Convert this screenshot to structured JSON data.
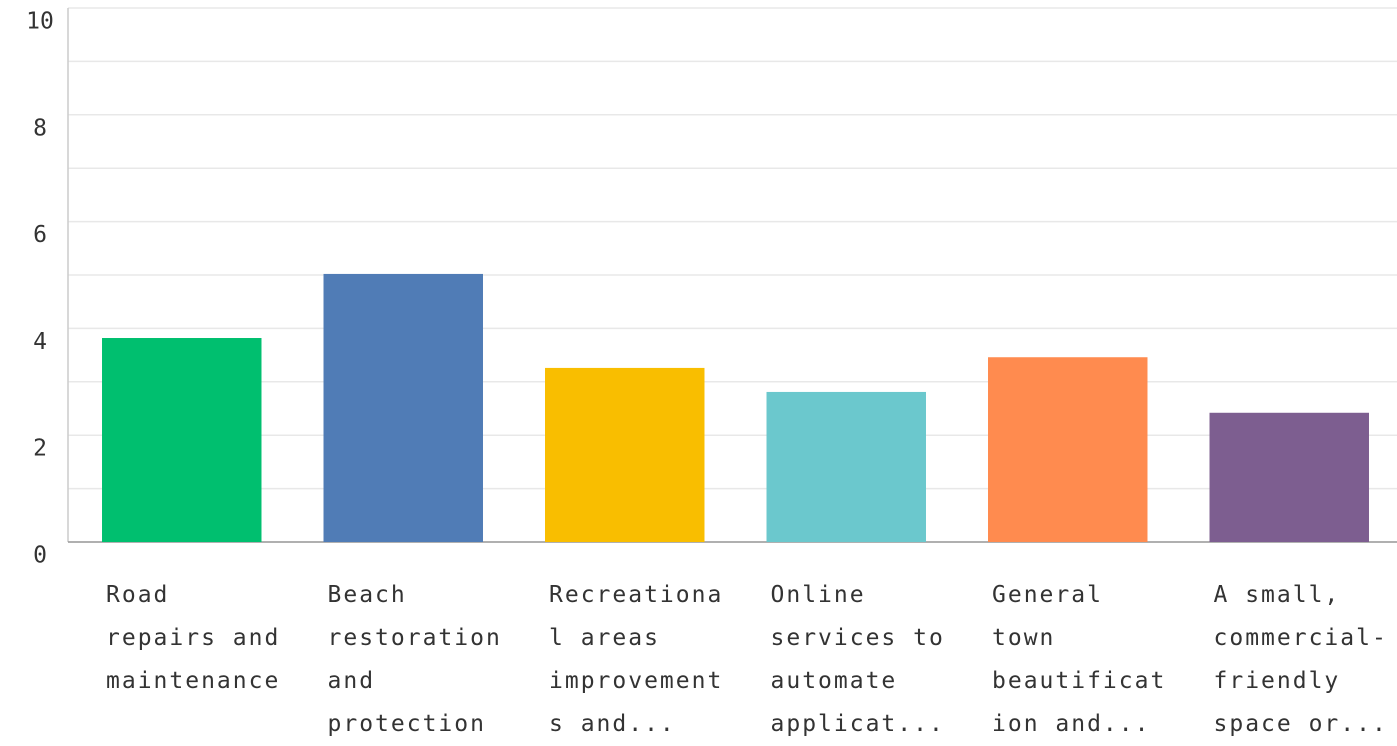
{
  "chart_data": {
    "type": "bar",
    "categories": [
      "Road\nrepairs and\nmaintenance",
      "Beach\nrestoration\nand\nprotection",
      "Recreationa\nl areas\nimprovement\ns and...",
      "Online\nservices to\nautomate\napplicat...",
      "General\ntown\nbeautificat\nion and...",
      "A small,\ncommercial-\nfriendly\nspace or..."
    ],
    "values": [
      3.82,
      5.02,
      3.26,
      2.81,
      3.46,
      2.42
    ],
    "colors": [
      "#00bf6f",
      "#507cb6",
      "#f9be00",
      "#6bc8cd",
      "#ff8b4f",
      "#7d5e90"
    ],
    "ylim": [
      0,
      10
    ],
    "yticks": [
      0,
      2,
      4,
      6,
      8,
      10
    ],
    "y_minor_ticks": [
      1,
      3,
      5,
      7,
      9
    ],
    "grid": true
  }
}
